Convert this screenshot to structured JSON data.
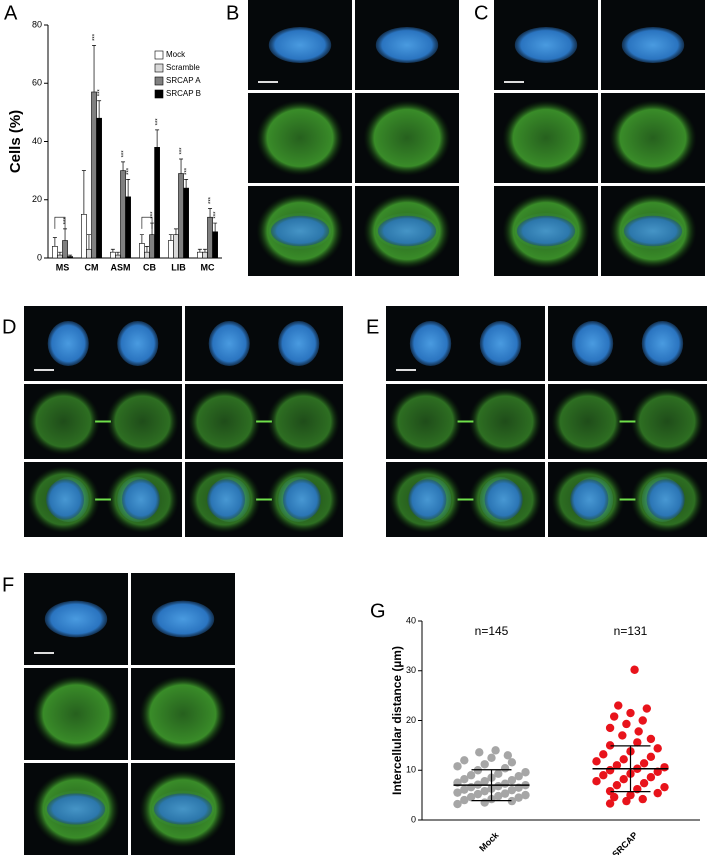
{
  "panel_labels": [
    "A",
    "B",
    "C",
    "D",
    "E",
    "F",
    "G"
  ],
  "chart_data": [
    {
      "type": "bar",
      "ylabel": "Cells (%)",
      "categories": [
        "MS",
        "CM",
        "ASM",
        "CB",
        "LIB",
        "MC"
      ],
      "ylim": [
        0,
        80
      ],
      "yticks": [
        0,
        20,
        40,
        60,
        80
      ],
      "legend": "top-right",
      "series": [
        {
          "name": "Mock",
          "color": "#ffffff",
          "values": [
            4,
            15,
            2,
            5,
            6,
            2
          ],
          "errors": [
            3,
            15,
            1,
            3,
            2,
            1
          ],
          "significance": [
            null,
            null,
            null,
            null,
            null,
            null
          ]
        },
        {
          "name": "Scramble",
          "color": "#d9d9d9",
          "values": [
            1,
            3,
            1,
            2,
            8,
            2
          ],
          "errors": [
            1,
            5,
            1,
            2,
            2,
            1
          ],
          "significance": [
            null,
            null,
            null,
            null,
            null,
            null
          ]
        },
        {
          "name": "SRCAP A",
          "color": "#808080",
          "values": [
            6,
            57,
            30,
            8,
            29,
            14
          ],
          "errors": [
            4,
            16,
            3,
            4,
            5,
            3
          ],
          "significance": [
            "***",
            "***",
            "***",
            "***",
            "***",
            "***"
          ]
        },
        {
          "name": "SRCAP B",
          "color": "#000000",
          "values": [
            0.5,
            48,
            21,
            38,
            24,
            9
          ],
          "errors": [
            0.5,
            6,
            6,
            6,
            3,
            3
          ],
          "significance": [
            null,
            "***",
            "***",
            "***",
            "***",
            "***"
          ]
        }
      ]
    },
    {
      "type": "strip",
      "ylabel": "Intercellular distance (µm)",
      "categories": [
        "Mock",
        "SRCAP"
      ],
      "ylim": [
        0,
        40
      ],
      "yticks": [
        0,
        10,
        20,
        30,
        40
      ],
      "annotations": [
        "n=145",
        "n=131"
      ],
      "series": [
        {
          "name": "Mock",
          "color": "#a6a6a6",
          "mean": 7,
          "sd": 3.1,
          "values": [
            3.2,
            3.5,
            3.8,
            4,
            4.2,
            4.5,
            4.6,
            4.8,
            5,
            5.2,
            5.3,
            5.5,
            5.8,
            6,
            6.1,
            6.3,
            6.5,
            6.6,
            6.8,
            7,
            7.1,
            7.3,
            7.5,
            7.8,
            8,
            8.2,
            8.5,
            8.8,
            9,
            9.3,
            9.6,
            10,
            10.4,
            10.8,
            11.2,
            11.6,
            12,
            12.5,
            13,
            13.6,
            14
          ]
        },
        {
          "name": "SRCAP",
          "color": "#e8131b",
          "mean": 10.3,
          "sd": 4.6,
          "values": [
            3.3,
            3.8,
            4.2,
            4.6,
            5,
            5.4,
            5.8,
            6.2,
            6.6,
            7,
            7.4,
            7.8,
            8.2,
            8.6,
            9,
            9.3,
            9.7,
            10,
            10.3,
            10.6,
            11,
            11.4,
            11.8,
            12.2,
            12.7,
            13.2,
            13.8,
            14.4,
            15,
            15.6,
            16.3,
            17,
            17.8,
            18.5,
            19.3,
            20,
            20.8,
            21.5,
            22.4,
            23,
            30.2
          ]
        }
      ]
    }
  ]
}
